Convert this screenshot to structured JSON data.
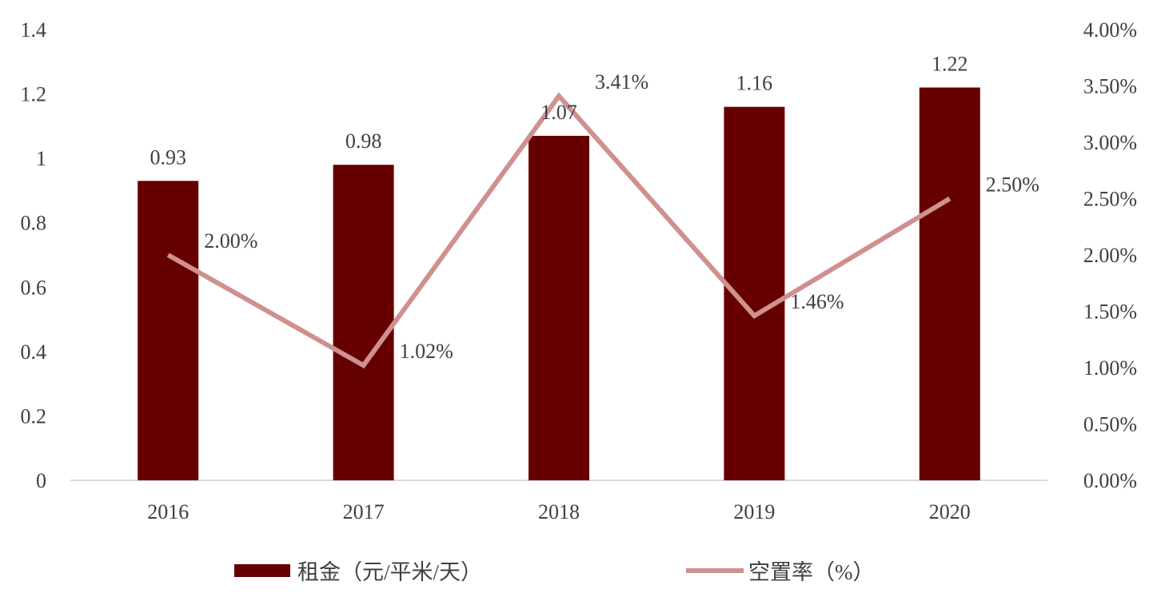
{
  "chart_data": {
    "type": "bar",
    "categories": [
      "2016",
      "2017",
      "2018",
      "2019",
      "2020"
    ],
    "series": [
      {
        "name": "租金（元/平米/天）",
        "type": "bar",
        "axis": "left",
        "values": [
          0.93,
          0.98,
          1.07,
          1.16,
          1.22
        ],
        "labels": [
          "0.93",
          "0.98",
          "1.07",
          "1.16",
          "1.22"
        ],
        "color": "#660000"
      },
      {
        "name": "空置率（%）",
        "type": "line",
        "axis": "right",
        "values": [
          2.0,
          1.02,
          3.41,
          1.46,
          2.5
        ],
        "labels": [
          "2.00%",
          "1.02%",
          "3.41%",
          "1.46%",
          "2.50%"
        ],
        "color": "#D09090"
      }
    ],
    "left_axis": {
      "min": 0,
      "max": 1.4,
      "ticks": [
        "0",
        "0.2",
        "0.4",
        "0.6",
        "0.8",
        "1",
        "1.2",
        "1.4"
      ]
    },
    "right_axis": {
      "min": 0,
      "max": 4,
      "ticks": [
        "0.00%",
        "0.50%",
        "1.00%",
        "1.50%",
        "2.00%",
        "2.50%",
        "3.00%",
        "3.50%",
        "4.00%"
      ]
    },
    "grid": false,
    "legend_position": "bottom"
  }
}
